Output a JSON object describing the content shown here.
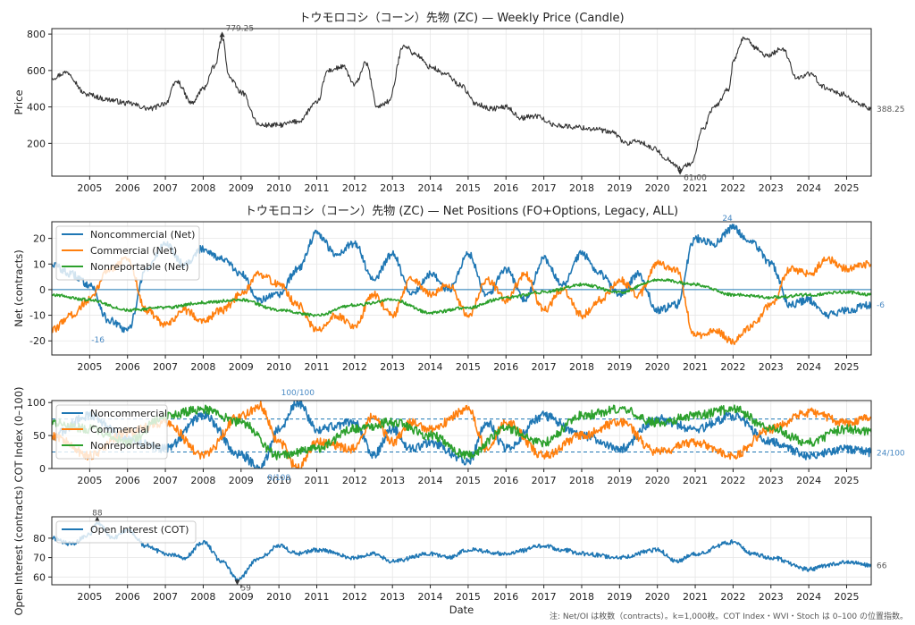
{
  "footnote": "注: Net/OI は枚数（contracts）。k=1,000枚。COT Index・WVI・Stoch は 0–100 の位置指数。",
  "colors": {
    "noncommercial": "#1f77b4",
    "commercial": "#ff7f0e",
    "nonreportable": "#2ca02c",
    "price": "#333333",
    "oi": "#1f77b4",
    "ref": "#1f77b4"
  },
  "chart_data": [
    {
      "type": "line",
      "title": "トウモロコシ（コーン）先物 (ZC) — Weekly Price (Candle)",
      "xlabel": "",
      "ylabel": "Price",
      "xlim": [
        2004.0,
        2025.65
      ],
      "ylim": [
        20,
        830
      ],
      "yticks": [
        200,
        400,
        600,
        800
      ],
      "x_ticks": [
        "2005",
        "2006",
        "2007",
        "2008",
        "2009",
        "2010",
        "2011",
        "2012",
        "2013",
        "2014",
        "2015",
        "2016",
        "2017",
        "2018",
        "2019",
        "2020",
        "2021",
        "2022",
        "2023",
        "2024",
        "2025"
      ],
      "series": [
        {
          "key": "price",
          "x": [
            2004.0,
            2004.4,
            2004.9,
            2005.5,
            2006.0,
            2006.6,
            2007.0,
            2007.3,
            2007.7,
            2008.0,
            2008.3,
            2008.5,
            2008.7,
            2009.0,
            2009.5,
            2010.0,
            2010.5,
            2011.0,
            2011.3,
            2011.7,
            2012.0,
            2012.3,
            2012.6,
            2012.9,
            2013.3,
            2013.6,
            2014.0,
            2014.4,
            2014.8,
            2015.2,
            2015.6,
            2016.0,
            2016.4,
            2016.8,
            2017.3,
            2017.8,
            2018.3,
            2018.8,
            2019.2,
            2019.5,
            2019.9,
            2020.3,
            2020.6,
            2020.9,
            2021.2,
            2021.5,
            2021.9,
            2022.0,
            2022.3,
            2022.6,
            2022.9,
            2023.3,
            2023.7,
            2024.0,
            2024.5,
            2024.9,
            2025.2,
            2025.65
          ],
          "values": [
            560,
            590,
            470,
            440,
            420,
            390,
            420,
            540,
            420,
            500,
            620,
            779.25,
            560,
            480,
            300,
            300,
            320,
            420,
            600,
            620,
            520,
            640,
            400,
            430,
            740,
            690,
            620,
            580,
            520,
            420,
            390,
            400,
            340,
            350,
            300,
            290,
            280,
            260,
            200,
            210,
            170,
            110,
            61,
            90,
            280,
            400,
            500,
            650,
            780,
            720,
            680,
            720,
            560,
            580,
            500,
            470,
            430,
            388.25
          ]
        }
      ],
      "annotations": [
        {
          "text": "779.25",
          "x": 2008.5,
          "y": 779.25
        },
        {
          "text": "61.00",
          "x": 2020.6,
          "y": 61
        },
        {
          "text": "388.25",
          "x": 2025.65,
          "y": 388.25
        }
      ]
    },
    {
      "type": "line",
      "title": "トウモロコシ（コーン）先物 (ZC) — Net Positions (FO+Options, Legacy, ALL)",
      "xlabel": "",
      "ylabel": "Net (contracts)",
      "xlim": [
        2004.0,
        2025.65
      ],
      "ylim": [
        -25.5,
        26.5
      ],
      "yticks": [
        -20,
        -10,
        0,
        10,
        20
      ],
      "legend": "top-left",
      "x_ticks": [
        "2005",
        "2006",
        "2007",
        "2008",
        "2009",
        "2010",
        "2011",
        "2012",
        "2013",
        "2014",
        "2015",
        "2016",
        "2017",
        "2018",
        "2019",
        "2020",
        "2021",
        "2022",
        "2023",
        "2024",
        "2025"
      ],
      "series": [
        {
          "key": "noncommercial",
          "name": "Noncommercial (Net)",
          "x": [
            2004.0,
            2004.5,
            2005.0,
            2005.5,
            2006.0,
            2006.5,
            2007.0,
            2007.5,
            2008.0,
            2008.5,
            2009.0,
            2009.5,
            2010.0,
            2010.5,
            2011.0,
            2011.5,
            2012.0,
            2012.5,
            2013.0,
            2013.5,
            2014.0,
            2014.5,
            2015.0,
            2015.5,
            2016.0,
            2016.5,
            2017.0,
            2017.5,
            2018.0,
            2018.5,
            2019.0,
            2019.5,
            2020.0,
            2020.5,
            2021.0,
            2021.5,
            2022.0,
            2022.5,
            2023.0,
            2023.5,
            2024.0,
            2024.5,
            2025.0,
            2025.65
          ],
          "values": [
            10,
            6,
            2,
            -12,
            -16,
            8,
            18,
            10,
            16,
            12,
            6,
            -4,
            -2,
            8,
            22,
            14,
            18,
            4,
            14,
            -2,
            6,
            0,
            14,
            -2,
            8,
            -4,
            12,
            2,
            14,
            6,
            -2,
            6,
            -8,
            -6,
            20,
            18,
            24,
            18,
            10,
            -6,
            -4,
            -10,
            -8,
            -6
          ]
        },
        {
          "key": "commercial",
          "name": "Commercial (Net)",
          "x": [
            2004.0,
            2004.5,
            2005.0,
            2005.5,
            2006.0,
            2006.5,
            2007.0,
            2007.5,
            2008.0,
            2008.5,
            2009.0,
            2009.5,
            2010.0,
            2010.5,
            2011.0,
            2011.5,
            2012.0,
            2012.5,
            2013.0,
            2013.5,
            2014.0,
            2014.5,
            2015.0,
            2015.5,
            2016.0,
            2016.5,
            2017.0,
            2017.5,
            2018.0,
            2018.5,
            2019.0,
            2019.5,
            2020.0,
            2020.5,
            2021.0,
            2021.5,
            2022.0,
            2022.5,
            2023.0,
            2023.5,
            2024.0,
            2024.5,
            2025.0,
            2025.65
          ],
          "values": [
            -16,
            -10,
            -4,
            8,
            12,
            -8,
            -14,
            -8,
            -12,
            -8,
            -2,
            6,
            2,
            -6,
            -16,
            -10,
            -14,
            -2,
            -10,
            4,
            -2,
            2,
            -10,
            4,
            -4,
            6,
            -8,
            0,
            -10,
            -4,
            4,
            -2,
            10,
            8,
            -18,
            -16,
            -20,
            -14,
            -6,
            8,
            6,
            12,
            8,
            10
          ]
        },
        {
          "key": "nonreportable",
          "name": "Nonreportable (Net)",
          "x": [
            2004.0,
            2005.0,
            2006.0,
            2007.0,
            2008.0,
            2009.0,
            2010.0,
            2011.0,
            2012.0,
            2013.0,
            2014.0,
            2015.0,
            2016.0,
            2017.0,
            2018.0,
            2019.0,
            2020.0,
            2021.0,
            2022.0,
            2023.0,
            2024.0,
            2025.0,
            2025.65
          ],
          "values": [
            -2,
            -4,
            -8,
            -7,
            -5,
            -4,
            -8,
            -10,
            -6,
            -4,
            -9,
            -7,
            -3,
            -1,
            2,
            -1,
            4,
            2,
            -2,
            -3,
            -2,
            -1,
            -2
          ]
        }
      ],
      "annotations": [
        {
          "text": "24",
          "x": 2021.85,
          "y": 24
        },
        {
          "text": "-16",
          "x": 2004.95,
          "y": -16
        },
        {
          "text": "-6",
          "x": 2025.65,
          "y": -6
        }
      ]
    },
    {
      "type": "line",
      "ylabel": "COT Index (0–100)",
      "xlabel": "",
      "xlim": [
        2004.0,
        2025.65
      ],
      "ylim": [
        0,
        103
      ],
      "yticks": [
        0,
        50,
        100
      ],
      "reference_lines": [
        25,
        75
      ],
      "legend": "top-left",
      "x_ticks": [
        "2005",
        "2006",
        "2007",
        "2008",
        "2009",
        "2010",
        "2011",
        "2012",
        "2013",
        "2014",
        "2015",
        "2016",
        "2017",
        "2018",
        "2019",
        "2020",
        "2021",
        "2022",
        "2023",
        "2024",
        "2025"
      ],
      "series": [
        {
          "key": "noncommercial",
          "name": "Noncommercial",
          "x": [
            2004.0,
            2005.0,
            2006.0,
            2007.0,
            2008.0,
            2009.0,
            2009.5,
            2010.0,
            2010.5,
            2011.0,
            2012.0,
            2012.5,
            2013.0,
            2013.5,
            2014.0,
            2015.0,
            2015.5,
            2016.0,
            2017.0,
            2018.0,
            2019.0,
            2020.0,
            2021.0,
            2022.0,
            2023.0,
            2024.0,
            2025.0,
            2025.65
          ],
          "values": [
            50,
            80,
            45,
            30,
            80,
            20,
            0,
            60,
            100,
            60,
            70,
            20,
            60,
            30,
            40,
            10,
            70,
            30,
            80,
            50,
            30,
            75,
            60,
            80,
            40,
            20,
            30,
            24
          ]
        },
        {
          "key": "commercial",
          "name": "Commercial",
          "x": [
            2004.0,
            2005.0,
            2006.0,
            2007.0,
            2008.0,
            2009.0,
            2009.5,
            2010.0,
            2010.5,
            2011.0,
            2012.0,
            2012.5,
            2013.0,
            2013.5,
            2014.0,
            2015.0,
            2015.5,
            2016.0,
            2017.0,
            2018.0,
            2019.0,
            2020.0,
            2021.0,
            2022.0,
            2023.0,
            2024.0,
            2025.0,
            2025.65
          ],
          "values": [
            50,
            20,
            55,
            70,
            20,
            80,
            95,
            40,
            0,
            40,
            30,
            80,
            40,
            70,
            60,
            90,
            30,
            70,
            20,
            50,
            70,
            25,
            40,
            20,
            60,
            85,
            70,
            76
          ]
        },
        {
          "key": "nonreportable",
          "name": "Nonreportable",
          "x": [
            2004.0,
            2005.0,
            2006.0,
            2007.0,
            2008.0,
            2009.0,
            2010.0,
            2011.0,
            2012.0,
            2013.0,
            2014.0,
            2015.0,
            2016.0,
            2017.0,
            2018.0,
            2019.0,
            2020.0,
            2021.0,
            2022.0,
            2023.0,
            2024.0,
            2025.0,
            2025.65
          ],
          "values": [
            70,
            60,
            40,
            80,
            90,
            70,
            20,
            30,
            60,
            70,
            50,
            20,
            60,
            40,
            80,
            90,
            70,
            80,
            90,
            60,
            40,
            60,
            55
          ]
        }
      ],
      "annotations": [
        {
          "text": "100/100",
          "x": 2010.5,
          "y": 100
        },
        {
          "text": "0/100",
          "x": 2009.6,
          "y": 0
        },
        {
          "text": "24/100",
          "x": 2025.65,
          "y": 24
        }
      ]
    },
    {
      "type": "line",
      "ylabel": "Open Interest (contracts)",
      "xlabel": "Date",
      "xlim": [
        2004.0,
        2025.65
      ],
      "ylim": [
        56,
        91
      ],
      "yticks": [
        60,
        70,
        80
      ],
      "legend": "top-left",
      "x_ticks": [
        "2005",
        "2006",
        "2007",
        "2008",
        "2009",
        "2010",
        "2011",
        "2012",
        "2013",
        "2014",
        "2015",
        "2016",
        "2017",
        "2018",
        "2019",
        "2020",
        "2021",
        "2022",
        "2023",
        "2024",
        "2025"
      ],
      "series": [
        {
          "key": "oi",
          "name": "Open Interest (COT)",
          "x": [
            2004.0,
            2004.5,
            2005.0,
            2005.2,
            2005.6,
            2006.0,
            2006.5,
            2007.0,
            2007.5,
            2008.0,
            2008.5,
            2008.9,
            2009.5,
            2010.0,
            2010.5,
            2011.0,
            2012.0,
            2012.5,
            2013.0,
            2014.0,
            2014.5,
            2015.0,
            2016.0,
            2017.0,
            2017.5,
            2018.0,
            2019.0,
            2020.0,
            2020.5,
            2021.0,
            2022.0,
            2022.5,
            2023.0,
            2024.0,
            2024.5,
            2025.0,
            2025.65
          ],
          "values": [
            80,
            77,
            82,
            88,
            80,
            84,
            76,
            72,
            70,
            78,
            68,
            59,
            70,
            76,
            72,
            74,
            70,
            72,
            68,
            72,
            70,
            74,
            72,
            76,
            74,
            72,
            70,
            74,
            68,
            72,
            78,
            72,
            70,
            64,
            66,
            68,
            66
          ]
        }
      ],
      "annotations": [
        {
          "text": "88",
          "x": 2005.2,
          "y": 88
        },
        {
          "text": "59",
          "x": 2008.9,
          "y": 59
        },
        {
          "text": "66",
          "x": 2025.65,
          "y": 66
        }
      ]
    }
  ]
}
